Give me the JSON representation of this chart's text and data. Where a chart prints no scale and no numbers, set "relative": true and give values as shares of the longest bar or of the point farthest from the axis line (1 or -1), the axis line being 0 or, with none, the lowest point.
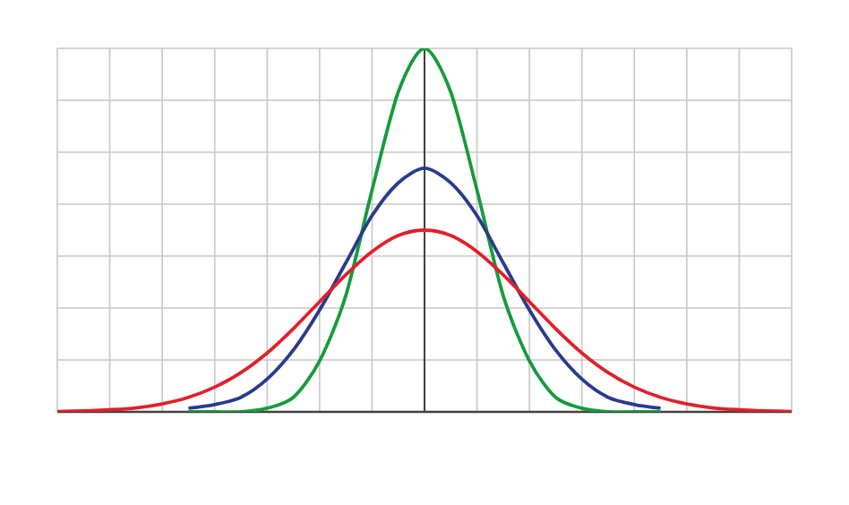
{
  "chart_data": {
    "type": "line",
    "relative": true,
    "grid": true,
    "marker": "none",
    "line_style": "solid",
    "categories": [
      null,
      null,
      null,
      null,
      null,
      null,
      null,
      null,
      null,
      null,
      null,
      null,
      null,
      null,
      null,
      null,
      null,
      null,
      null,
      null,
      null,
      null,
      null,
      null,
      null,
      null,
      null,
      null,
      null
    ],
    "series": [
      {
        "color": "#e0202a",
        "values": [
          0.001,
          0.003,
          0.006,
          0.011,
          0.022,
          0.04,
          0.068,
          0.108,
          0.162,
          0.229,
          0.303,
          0.377,
          0.441,
          0.485,
          0.5,
          0.485,
          0.441,
          0.377,
          0.303,
          0.229,
          0.162,
          0.108,
          0.068,
          0.04,
          0.022,
          0.011,
          0.006,
          0.003,
          0.001
        ]
      },
      {
        "color": "#283b8c",
        "values": [
          null,
          null,
          null,
          null,
          null,
          0.01,
          0.02,
          0.04,
          0.09,
          0.17,
          0.28,
          0.41,
          0.54,
          0.63,
          0.67,
          0.63,
          0.54,
          0.41,
          0.28,
          0.17,
          0.09,
          0.04,
          0.02,
          0.01,
          null,
          null,
          null,
          null,
          null
        ]
      },
      {
        "color": "#169b3c",
        "values": [
          null,
          null,
          null,
          null,
          null,
          0,
          0,
          0,
          0.01,
          0.04,
          0.14,
          0.32,
          0.61,
          0.88,
          1,
          0.88,
          0.61,
          0.32,
          0.14,
          0.04,
          0.01,
          0,
          0,
          0,
          null,
          null,
          null,
          null,
          null
        ]
      }
    ]
  }
}
